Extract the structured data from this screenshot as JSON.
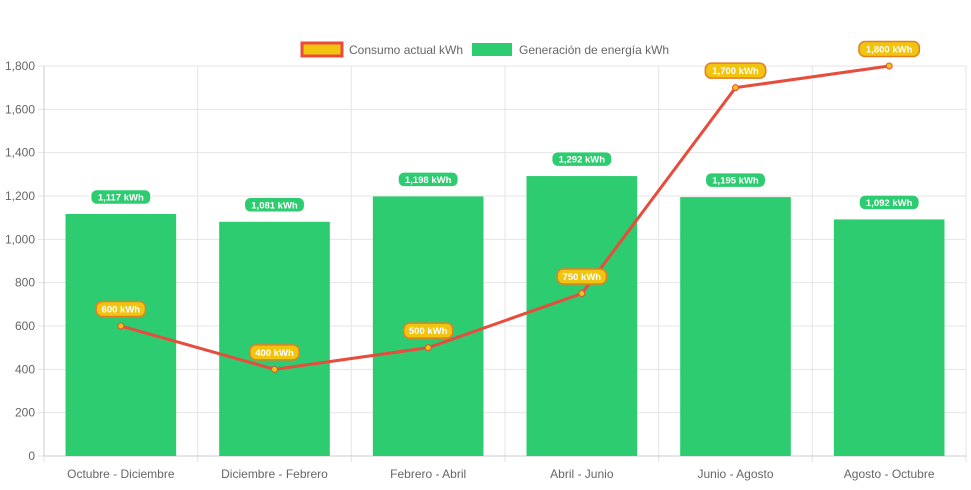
{
  "chart_data": {
    "type": "bar",
    "categories": [
      "Octubre - Diciembre",
      "Diciembre - Febrero",
      "Febrero - Abril",
      "Abril - Junio",
      "Junio - Agosto",
      "Agosto - Octubre"
    ],
    "ylim": [
      0,
      1800
    ],
    "yticks": [
      0,
      200,
      400,
      600,
      800,
      1000,
      1200,
      1400,
      1600,
      1800
    ],
    "ytick_labels": [
      "0",
      "200",
      "400",
      "600",
      "800",
      "1,000",
      "1,200",
      "1,400",
      "1,600",
      "1,800"
    ],
    "grid": true,
    "legend_position": "top",
    "series": [
      {
        "name": "Consumo actual kWh",
        "type": "line",
        "values": [
          600,
          400,
          500,
          750,
          1700,
          1800
        ],
        "labels": [
          "600 kWh",
          "400 kWh",
          "500 kWh",
          "750 kWh",
          "1,700 kWh",
          "1,800 kWh"
        ],
        "color": "#e74c3c",
        "fill": "#f1c40f"
      },
      {
        "name": "Generación de energía kWh",
        "type": "bar",
        "values": [
          1117,
          1081,
          1198,
          1292,
          1195,
          1092
        ],
        "labels": [
          "1,117 kWh",
          "1,081 kWh",
          "1,198 kWh",
          "1,292 kWh",
          "1,195 kWh",
          "1,092 kWh"
        ],
        "color": "#2ecc71"
      }
    ]
  }
}
